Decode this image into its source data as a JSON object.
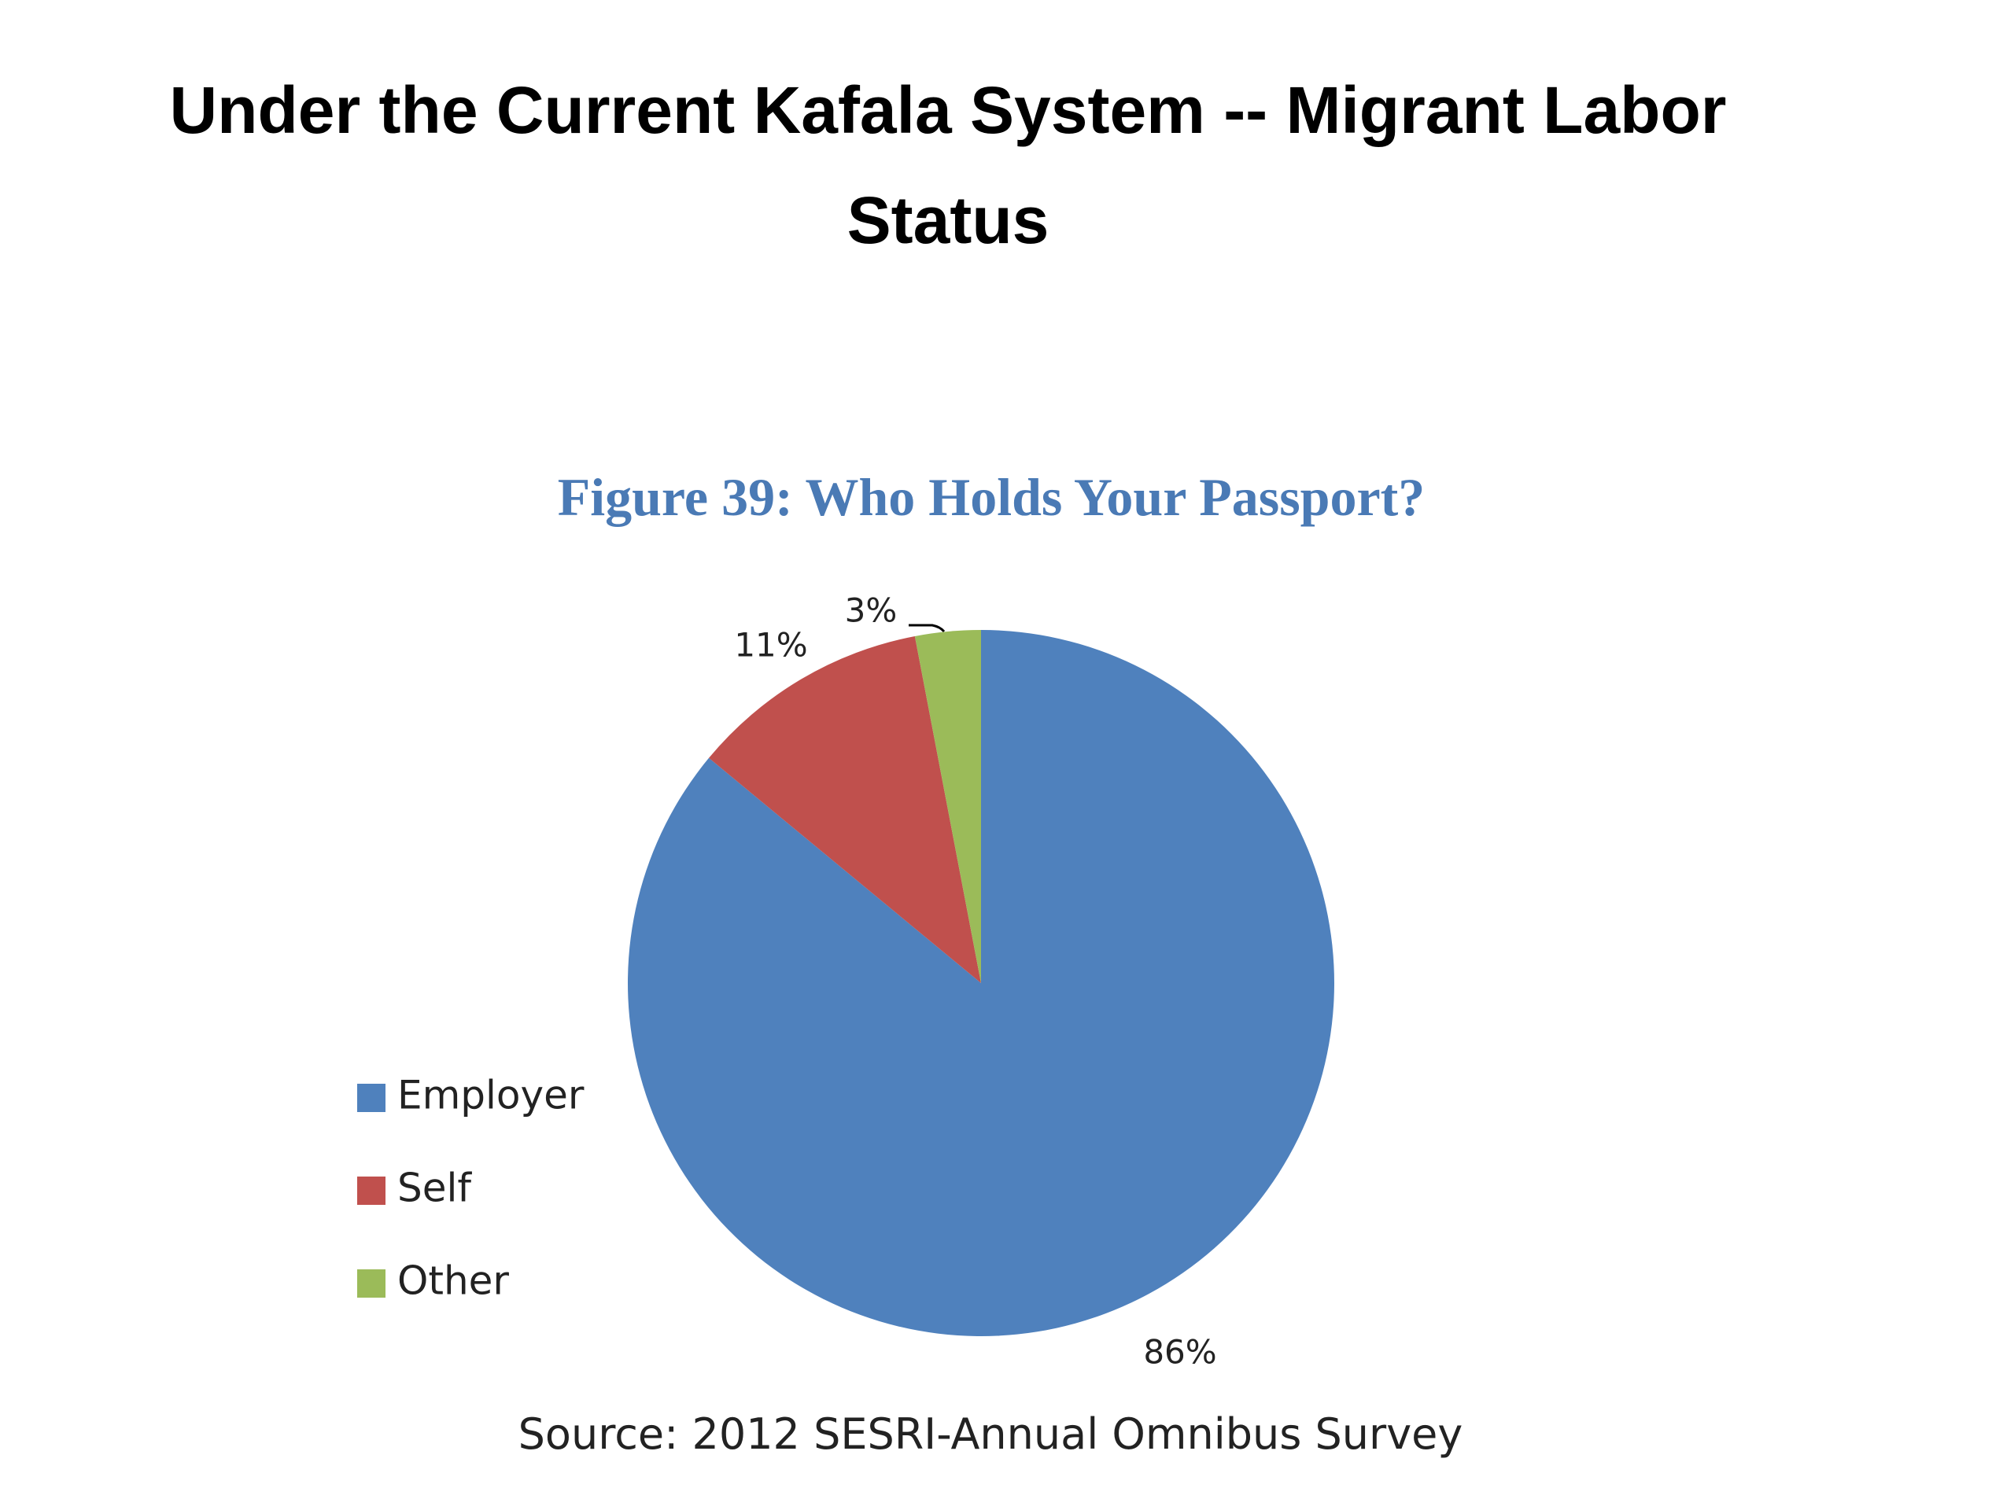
{
  "slide_title": "Under the Current Kafala System --  Migrant Labor Status",
  "source": "Source: 2012 SESRI-Annual Omnibus Survey",
  "chart_data": {
    "type": "pie",
    "title": "Figure 39: Who Holds Your Passport?",
    "categories": [
      "Employer",
      "Self",
      "Other"
    ],
    "values": [
      86,
      11,
      3
    ],
    "value_labels": [
      "86%",
      "11%",
      "3%"
    ],
    "colors": [
      "#4f81bd",
      "#c0504d",
      "#9bbb59"
    ],
    "legend": "left"
  }
}
